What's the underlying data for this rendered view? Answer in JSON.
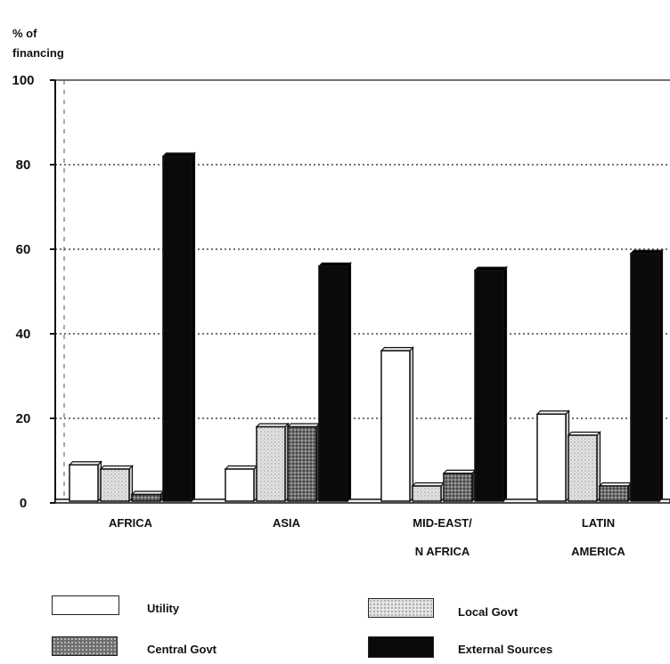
{
  "chart_data": {
    "type": "bar",
    "ylabel_line1": "% of",
    "ylabel_line2": "financing",
    "ylim": [
      0,
      100
    ],
    "yticks": [
      "0",
      "20",
      "40",
      "60",
      "80",
      "100"
    ],
    "grid": true,
    "categories": [
      {
        "line1": "AFRICA",
        "line2": ""
      },
      {
        "line1": "ASIA",
        "line2": ""
      },
      {
        "line1": "MID-EAST/",
        "line2": "N AFRICA"
      },
      {
        "line1": "LATIN",
        "line2": "AMERICA"
      }
    ],
    "series": [
      {
        "name": "Utility",
        "values": [
          9,
          8,
          36,
          21
        ],
        "color": "#ffffff",
        "pattern": "none"
      },
      {
        "name": "Local Govt",
        "values": [
          8,
          18,
          4,
          16
        ],
        "color": "#dcdcdc",
        "pattern": "light-dots"
      },
      {
        "name": "Central Govt",
        "values": [
          2,
          18,
          7,
          4
        ],
        "color": "#8a8a8a",
        "pattern": "dark-dots"
      },
      {
        "name": "External Sources",
        "values": [
          82,
          56,
          55,
          59
        ],
        "color": "#0a0a0a",
        "pattern": "solid"
      }
    ],
    "legend_position": "bottom"
  }
}
